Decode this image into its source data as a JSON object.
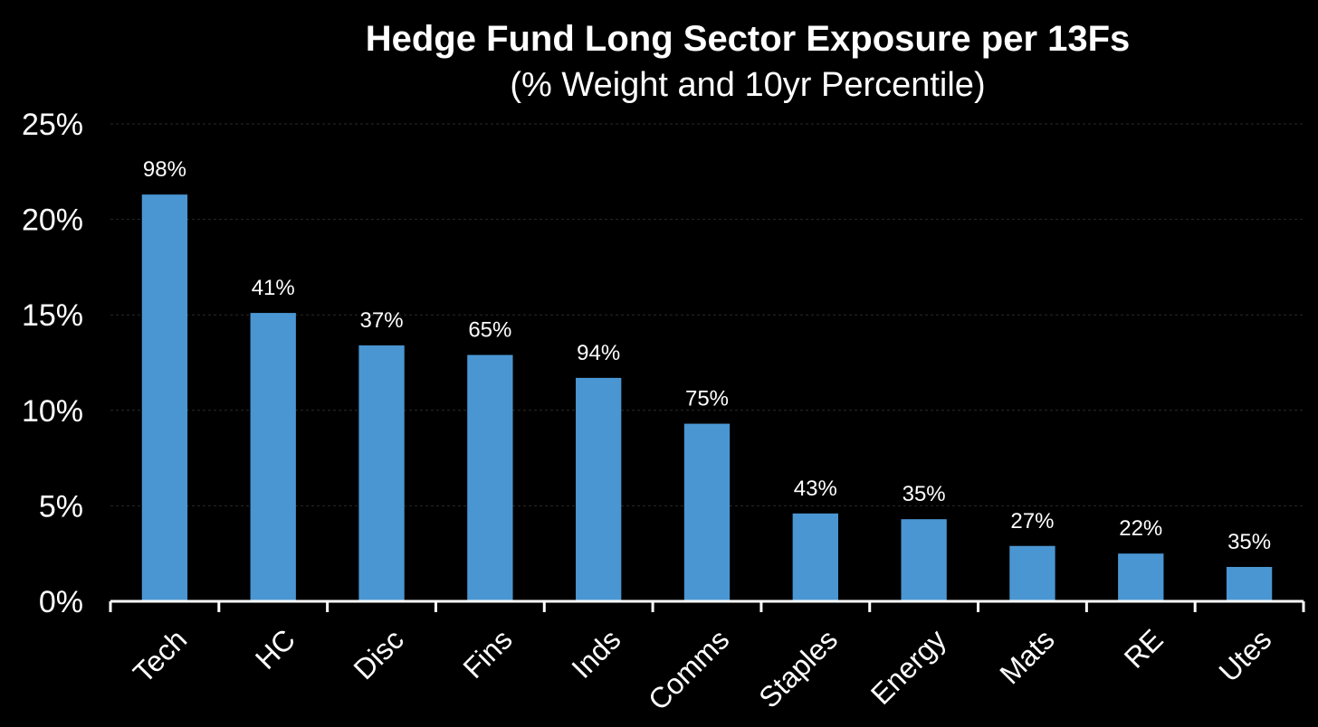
{
  "chart_data": {
    "type": "bar",
    "title": "Hedge Fund Long Sector Exposure per 13Fs",
    "subtitle": "(% Weight and 10yr Percentile)",
    "xlabel": "",
    "ylabel": "",
    "categories": [
      "Tech",
      "HC",
      "Disc",
      "Fins",
      "Inds",
      "Comms",
      "Staples",
      "Energy",
      "Mats",
      "RE",
      "Utes"
    ],
    "series": [
      {
        "values": [
          21.3,
          15.1,
          13.4,
          12.9,
          11.7,
          9.3,
          4.6,
          4.3,
          2.9,
          2.5,
          1.8
        ],
        "color": "#4a96d2"
      }
    ],
    "data_labels": [
      "98%",
      "41%",
      "37%",
      "65%",
      "94%",
      "75%",
      "43%",
      "35%",
      "27%",
      "22%",
      "35%"
    ],
    "ylim": [
      0,
      25
    ],
    "yticks": [
      0,
      5,
      10,
      15,
      20,
      25
    ],
    "ytick_labels": [
      "0%",
      "5%",
      "10%",
      "15%",
      "20%",
      "25%"
    ],
    "grid": true,
    "legend": "none",
    "background": "#000000"
  }
}
